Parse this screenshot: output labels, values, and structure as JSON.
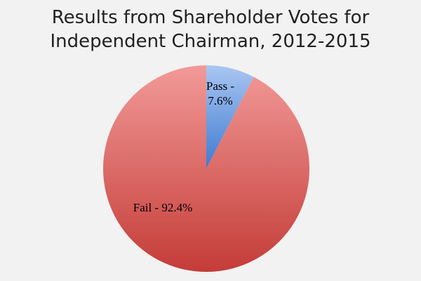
{
  "chart_data": {
    "type": "pie",
    "title_lines": [
      "Results from Shareholder Votes for",
      "Independent Chairman, 2012-2015"
    ],
    "slices": [
      {
        "name": "Pass",
        "value": 7.6,
        "label_lines": [
          "Pass -",
          "7.6%"
        ],
        "color_light": "#a9c6f2",
        "color_dark": "#3f7ad0"
      },
      {
        "name": "Fail",
        "value": 92.4,
        "label_lines": [
          "Fail - 92.4%"
        ],
        "color_light": "#f29a98",
        "color_dark": "#c43c38"
      }
    ],
    "start_angle": "12 o'clock",
    "direction": "clockwise",
    "legend": "none"
  }
}
